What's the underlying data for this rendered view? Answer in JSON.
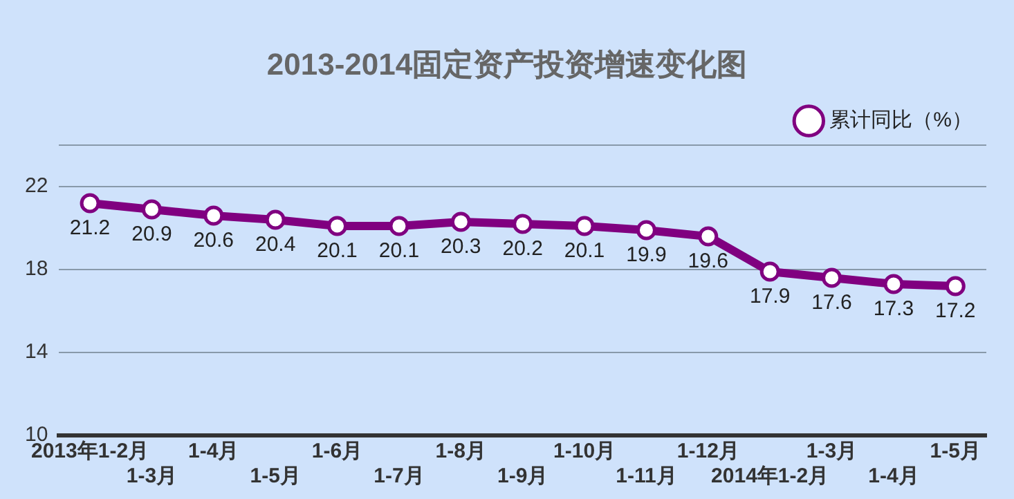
{
  "chart_data": {
    "type": "line",
    "title": "2013-2014固定资产投资增速变化图",
    "categories": [
      "2013年1-2月",
      "1-3月",
      "1-4月",
      "1-5月",
      "1-6月",
      "1-7月",
      "1-8月",
      "1-9月",
      "1-10月",
      "1-11月",
      "1-12月",
      "2014年1-2月",
      "1-3月",
      "1-4月",
      "1-5月"
    ],
    "series": [
      {
        "name": "累计同比（%）",
        "color": "#800080",
        "values": [
          21.2,
          20.9,
          20.6,
          20.4,
          20.1,
          20.1,
          20.3,
          20.2,
          20.1,
          19.9,
          19.6,
          17.9,
          17.6,
          17.3,
          17.2
        ]
      }
    ],
    "ylim": [
      10,
      24
    ],
    "yticks": [
      10,
      14,
      18,
      22,
      {
        "value": 24,
        "label": null
      }
    ],
    "grid": "y",
    "legend": "top right",
    "marker": "circle",
    "data_labels": true
  }
}
